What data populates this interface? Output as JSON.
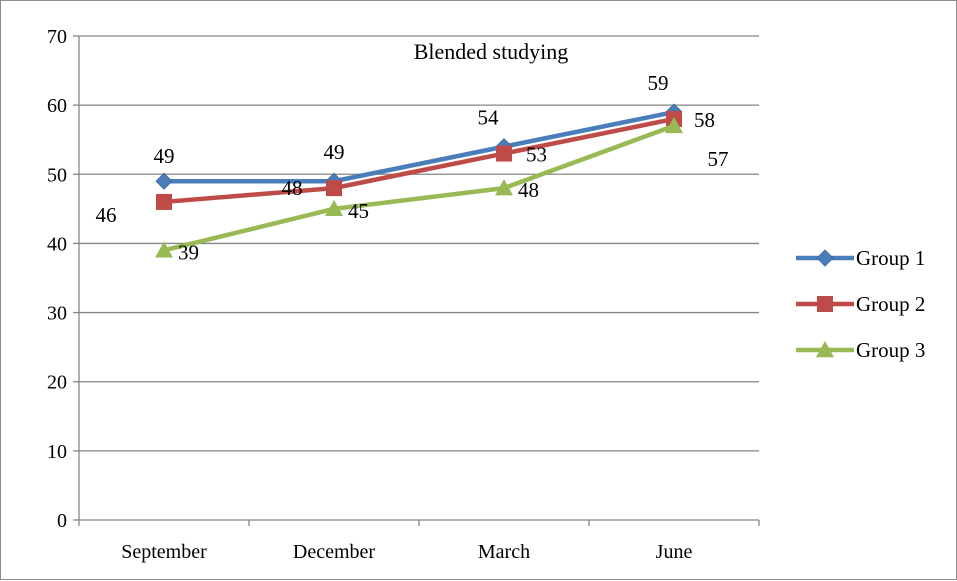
{
  "chart_data": {
    "type": "line",
    "title": "Blended studying",
    "xlabel": "",
    "ylabel": "",
    "categories": [
      "September",
      "December",
      "March",
      "June"
    ],
    "ylim": [
      0,
      70
    ],
    "yticks": [
      0,
      10,
      20,
      30,
      40,
      50,
      60,
      70
    ],
    "grid": true,
    "legend_position": "right",
    "series": [
      {
        "name": "Group 1",
        "values": [
          49,
          49,
          54,
          59
        ],
        "color": "#4a7ebb",
        "marker": "diamond"
      },
      {
        "name": "Group 2",
        "values": [
          46,
          48,
          53,
          58
        ],
        "color": "#be4b48",
        "marker": "square"
      },
      {
        "name": "Group 3",
        "values": [
          39,
          45,
          48,
          57
        ],
        "color": "#98b954",
        "marker": "triangle"
      }
    ]
  }
}
